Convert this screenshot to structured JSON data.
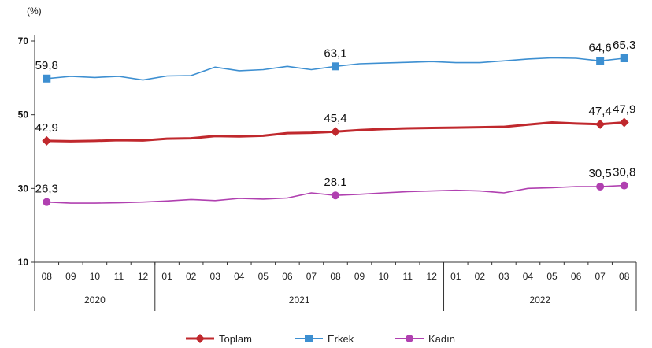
{
  "chart_data": {
    "type": "line",
    "unit_label": "(%)",
    "ylim": [
      10,
      70
    ],
    "yticks": [
      10,
      30,
      50,
      70
    ],
    "x": [
      "08",
      "09",
      "10",
      "11",
      "12",
      "01",
      "02",
      "03",
      "04",
      "05",
      "06",
      "07",
      "08",
      "09",
      "10",
      "11",
      "12",
      "01",
      "02",
      "03",
      "04",
      "05",
      "06",
      "07",
      "08"
    ],
    "years": [
      {
        "label": "2020",
        "start": 0,
        "end": 4
      },
      {
        "label": "2021",
        "start": 5,
        "end": 16
      },
      {
        "label": "2022",
        "start": 17,
        "end": 24
      }
    ],
    "series": [
      {
        "name": "Toplam",
        "color": "#c0282d",
        "marker": "diamond",
        "values": [
          42.9,
          42.8,
          42.9,
          43.1,
          43.0,
          43.5,
          43.6,
          44.2,
          44.1,
          44.3,
          45.0,
          45.1,
          45.4,
          45.8,
          46.1,
          46.3,
          46.4,
          46.5,
          46.6,
          46.7,
          47.3,
          47.9,
          47.6,
          47.4,
          47.9
        ],
        "labels": [
          {
            "index": 0,
            "text": "42,9"
          },
          {
            "index": 12,
            "text": "45,4"
          },
          {
            "index": 23,
            "text": "47,4"
          },
          {
            "index": 24,
            "text": "47,9"
          }
        ]
      },
      {
        "name": "Erkek",
        "color": "#3d8fd1",
        "marker": "square",
        "values": [
          59.8,
          60.4,
          60.1,
          60.4,
          59.4,
          60.5,
          60.6,
          62.9,
          61.9,
          62.2,
          63.1,
          62.2,
          63.1,
          63.8,
          64.0,
          64.2,
          64.4,
          64.1,
          64.1,
          64.6,
          65.1,
          65.4,
          65.3,
          64.6,
          65.3
        ],
        "labels": [
          {
            "index": 0,
            "text": "59,8"
          },
          {
            "index": 12,
            "text": "63,1"
          },
          {
            "index": 23,
            "text": "64,6"
          },
          {
            "index": 24,
            "text": "65,3"
          }
        ]
      },
      {
        "name": "Kadın",
        "color": "#b040b0",
        "marker": "circle",
        "values": [
          26.3,
          26.0,
          26.0,
          26.1,
          26.3,
          26.6,
          27.0,
          26.7,
          27.3,
          27.1,
          27.4,
          28.8,
          28.1,
          28.4,
          28.8,
          29.1,
          29.3,
          29.5,
          29.3,
          28.8,
          30.0,
          30.2,
          30.5,
          30.5,
          30.8
        ],
        "labels": [
          {
            "index": 0,
            "text": "26,3"
          },
          {
            "index": 12,
            "text": "28,1"
          },
          {
            "index": 23,
            "text": "30,5"
          },
          {
            "index": 24,
            "text": "30,8"
          }
        ]
      }
    ],
    "legend_position": "bottom-center"
  }
}
